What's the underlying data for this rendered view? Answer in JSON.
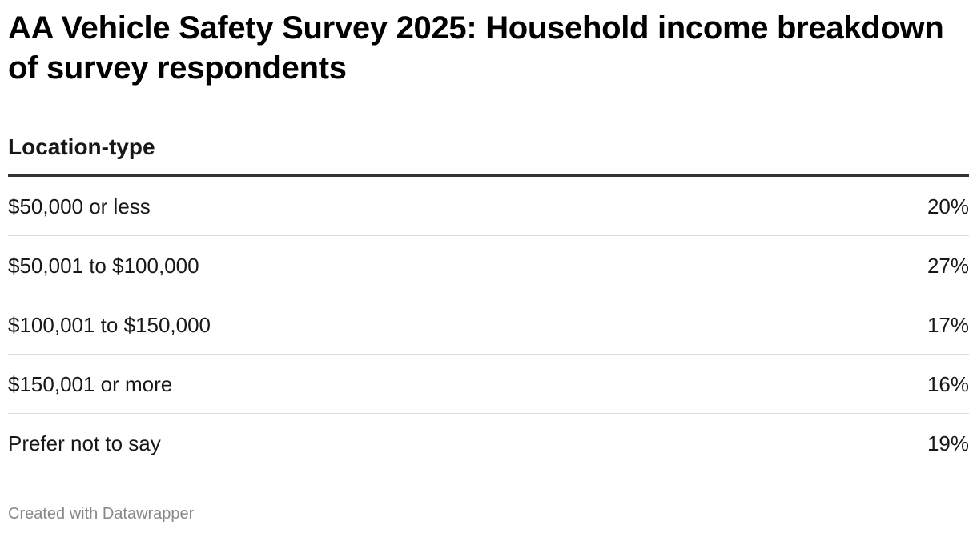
{
  "header": {
    "title": "AA Vehicle Safety Survey 2025: Household income breakdown of survey respondents"
  },
  "table": {
    "columns": [
      "Location-type"
    ],
    "rows": [
      [
        "$50,000 or less",
        "20%"
      ],
      [
        "$50,001 to $100,000",
        "27%"
      ],
      [
        "$100,001 to $150,000",
        "17%"
      ],
      [
        "$150,001 or more",
        "16%"
      ],
      [
        "Prefer not to say",
        "19%"
      ]
    ]
  },
  "footer": {
    "credit": "Created with Datawrapper"
  }
}
